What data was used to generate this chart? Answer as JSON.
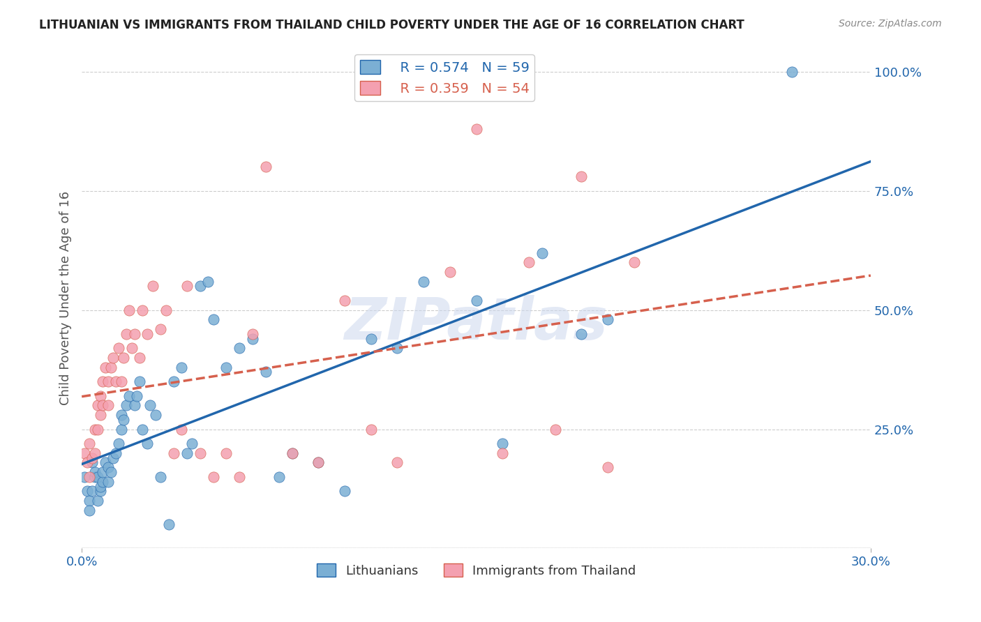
{
  "title": "LITHUANIAN VS IMMIGRANTS FROM THAILAND CHILD POVERTY UNDER THE AGE OF 16 CORRELATION CHART",
  "source": "Source: ZipAtlas.com",
  "ylabel": "Child Poverty Under the Age of 16",
  "xlabel": "",
  "xmin": 0.0,
  "xmax": 0.3,
  "ymin": 0.0,
  "ymax": 1.05,
  "yticks": [
    0.0,
    0.25,
    0.5,
    0.75,
    1.0
  ],
  "ytick_labels": [
    "",
    "25.0%",
    "50.0%",
    "75.0%",
    "100.0%"
  ],
  "xticks": [
    0.0,
    0.3
  ],
  "xtick_labels": [
    "0.0%",
    "30.0%"
  ],
  "series": [
    {
      "label": "Lithuanians",
      "R": 0.574,
      "N": 59,
      "color": "#7bafd4",
      "trend_color": "#2166ac",
      "trend_style": "solid",
      "x": [
        0.001,
        0.002,
        0.003,
        0.003,
        0.004,
        0.004,
        0.005,
        0.005,
        0.006,
        0.006,
        0.007,
        0.007,
        0.008,
        0.008,
        0.009,
        0.01,
        0.01,
        0.011,
        0.012,
        0.013,
        0.014,
        0.015,
        0.015,
        0.016,
        0.017,
        0.018,
        0.02,
        0.021,
        0.022,
        0.023,
        0.025,
        0.026,
        0.028,
        0.03,
        0.033,
        0.035,
        0.038,
        0.04,
        0.042,
        0.045,
        0.048,
        0.05,
        0.055,
        0.06,
        0.065,
        0.07,
        0.075,
        0.08,
        0.09,
        0.1,
        0.11,
        0.12,
        0.13,
        0.15,
        0.16,
        0.175,
        0.19,
        0.2,
        0.27
      ],
      "y": [
        0.15,
        0.12,
        0.1,
        0.08,
        0.18,
        0.12,
        0.15,
        0.16,
        0.15,
        0.1,
        0.12,
        0.13,
        0.14,
        0.16,
        0.18,
        0.14,
        0.17,
        0.16,
        0.19,
        0.2,
        0.22,
        0.25,
        0.28,
        0.27,
        0.3,
        0.32,
        0.3,
        0.32,
        0.35,
        0.25,
        0.22,
        0.3,
        0.28,
        0.15,
        0.05,
        0.35,
        0.38,
        0.2,
        0.22,
        0.55,
        0.56,
        0.48,
        0.38,
        0.42,
        0.44,
        0.37,
        0.15,
        0.2,
        0.18,
        0.12,
        0.44,
        0.42,
        0.56,
        0.52,
        0.22,
        0.62,
        0.45,
        0.48,
        1.0
      ]
    },
    {
      "label": "Immigrants from Thailand",
      "R": 0.359,
      "N": 54,
      "color": "#f4a0b0",
      "trend_color": "#d6604d",
      "trend_style": "dashed",
      "x": [
        0.001,
        0.002,
        0.003,
        0.003,
        0.004,
        0.005,
        0.005,
        0.006,
        0.006,
        0.007,
        0.007,
        0.008,
        0.008,
        0.009,
        0.01,
        0.01,
        0.011,
        0.012,
        0.013,
        0.014,
        0.015,
        0.016,
        0.017,
        0.018,
        0.019,
        0.02,
        0.022,
        0.023,
        0.025,
        0.027,
        0.03,
        0.032,
        0.035,
        0.038,
        0.04,
        0.045,
        0.05,
        0.055,
        0.06,
        0.065,
        0.07,
        0.08,
        0.09,
        0.1,
        0.11,
        0.12,
        0.14,
        0.15,
        0.16,
        0.17,
        0.18,
        0.19,
        0.2,
        0.21
      ],
      "y": [
        0.2,
        0.18,
        0.15,
        0.22,
        0.19,
        0.25,
        0.2,
        0.3,
        0.25,
        0.32,
        0.28,
        0.35,
        0.3,
        0.38,
        0.35,
        0.3,
        0.38,
        0.4,
        0.35,
        0.42,
        0.35,
        0.4,
        0.45,
        0.5,
        0.42,
        0.45,
        0.4,
        0.5,
        0.45,
        0.55,
        0.46,
        0.5,
        0.2,
        0.25,
        0.55,
        0.2,
        0.15,
        0.2,
        0.15,
        0.45,
        0.8,
        0.2,
        0.18,
        0.52,
        0.25,
        0.18,
        0.58,
        0.88,
        0.2,
        0.6,
        0.25,
        0.78,
        0.17,
        0.6
      ]
    }
  ],
  "watermark": "ZIPatlas",
  "background_color": "#ffffff",
  "grid_color": "#cccccc"
}
